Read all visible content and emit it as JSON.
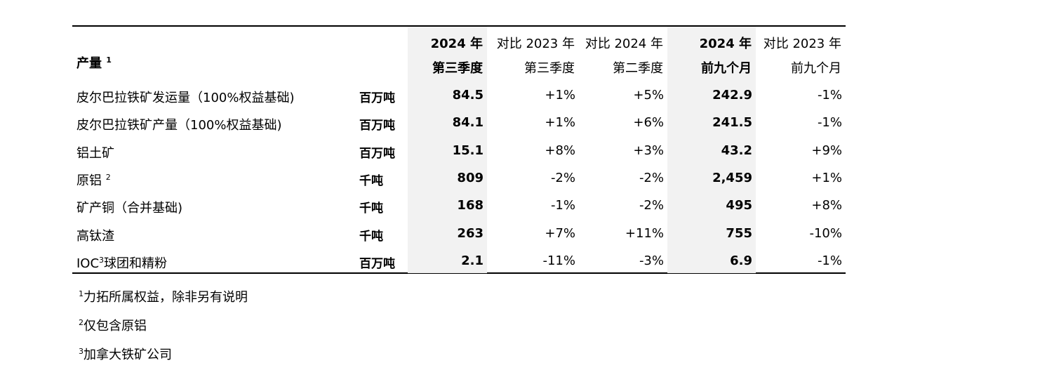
{
  "table": {
    "header": {
      "label": "产量",
      "label_sup": "1",
      "columns": [
        {
          "line1": "2024 年",
          "line2": "第三季度",
          "bold": true,
          "shaded": true
        },
        {
          "line1": "对比 2023 年",
          "line2": "第三季度",
          "bold": false,
          "shaded": false
        },
        {
          "line1": "对比 2024 年",
          "line2": "第二季度",
          "bold": false,
          "shaded": false
        },
        {
          "line1": "2024 年",
          "line2": "前九个月",
          "bold": true,
          "shaded": true
        },
        {
          "line1": "对比 2023 年",
          "line2": "前九个月",
          "bold": false,
          "shaded": false
        }
      ]
    },
    "rows": [
      {
        "name": "皮尔巴拉铁矿发运量（100%权益基础)",
        "unit": "百万吨",
        "cells": [
          "84.5",
          "+1%",
          "+5%",
          "242.9",
          "-1%"
        ]
      },
      {
        "name": "皮尔巴拉铁矿产量（100%权益基础)",
        "unit": "百万吨",
        "cells": [
          "84.1",
          "+1%",
          "+6%",
          "241.5",
          "-1%"
        ]
      },
      {
        "name": "铝土矿",
        "unit": "百万吨",
        "cells": [
          "15.1",
          "+8%",
          "+3%",
          "43.2",
          "+9%"
        ]
      },
      {
        "name": "原铝",
        "sup": "2",
        "unit": "千吨",
        "cells": [
          "809",
          "-2%",
          "-2%",
          "2,459",
          "+1%"
        ]
      },
      {
        "name": "矿产铜（合并基础)",
        "unit": "千吨",
        "cells": [
          "168",
          "-1%",
          "-2%",
          "495",
          "+8%"
        ]
      },
      {
        "name": "高钛渣",
        "unit": "千吨",
        "cells": [
          "263",
          "+7%",
          "+11%",
          "755",
          "-10%"
        ]
      },
      {
        "name": "IOC",
        "sup": "3",
        "name_suffix": "球团和精粉",
        "unit": "百万吨",
        "cells": [
          "2.1",
          "-11%",
          "-3%",
          "6.9",
          "-1%"
        ]
      }
    ]
  },
  "footnotes": [
    {
      "mark": "1",
      "text": "力拓所属权益，除非另有说明"
    },
    {
      "mark": "2",
      "text": "仅包含原铝"
    },
    {
      "mark": "3",
      "text": "加拿大铁矿公司"
    }
  ]
}
